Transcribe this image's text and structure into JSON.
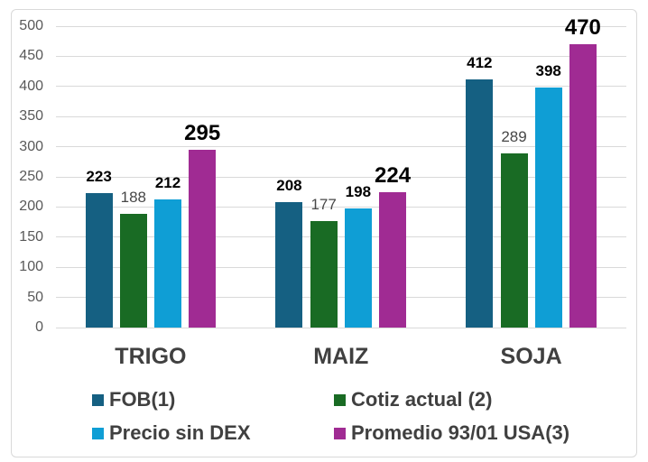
{
  "chart_data": {
    "type": "bar",
    "categories": [
      "TRIGO",
      "MAIZ",
      "SOJA"
    ],
    "series": [
      {
        "name": "FOB(1)",
        "color": "#156082",
        "values": [
          223,
          208,
          412
        ],
        "label_style": "bold"
      },
      {
        "name": "Cotiz actual (2)",
        "color": "#196B24",
        "values": [
          188,
          177,
          289
        ],
        "label_style": "regular"
      },
      {
        "name": "Precio sin DEX",
        "color": "#0F9ED5",
        "values": [
          212,
          198,
          398
        ],
        "label_style": "bold"
      },
      {
        "name": "Promedio 93/01 USA(3)",
        "color": "#A02B93",
        "values": [
          295,
          224,
          470
        ],
        "label_style": "large"
      }
    ],
    "y_axis": {
      "min": 0,
      "max": 500,
      "step": 50
    },
    "grid": true,
    "legend_position": "bottom",
    "colors": {
      "gridline": "#D9D9D9",
      "tick_label": "#595959",
      "category_label": "#404040",
      "data_label": "#000000",
      "data_label_regular": "#474747",
      "legend_text": "#404040",
      "border": "#D9D9D9",
      "background": "#FFFFFF"
    }
  }
}
